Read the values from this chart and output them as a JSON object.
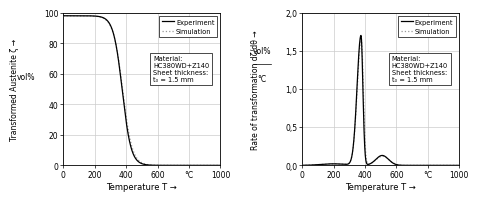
{
  "left": {
    "ylabel": "Transformed Austenite ζ →",
    "ylabel_unit": "vol%",
    "xlabel": "Temperature T →",
    "xlim": [
      0,
      1000
    ],
    "ylim": [
      0,
      100
    ],
    "yticks": [
      0,
      20,
      40,
      60,
      80,
      100
    ],
    "xticks": [
      0,
      200,
      400,
      600,
      800,
      1000
    ],
    "xticklabels": [
      "0",
      "200",
      "400",
      "600",
      "°C",
      "1000"
    ],
    "yticklabels": [
      "0",
      "20",
      "40",
      "60",
      "80",
      "100"
    ],
    "material_line1": "Material:",
    "material_line2": "HC380WD+Z140",
    "thickness_line1": "Sheet thickness:",
    "thickness_line2": "t₀ = 1.5 mm"
  },
  "right": {
    "ylabel": "Rate of transformation dζ/dθ →",
    "ylabel_unit_num": "vol%",
    "ylabel_unit_den": "°C",
    "xlabel": "Temperature T →",
    "xlim": [
      0,
      1000
    ],
    "ylim": [
      0.0,
      2.0
    ],
    "yticks": [
      0.0,
      0.5,
      1.0,
      1.5,
      2.0
    ],
    "xticks": [
      0,
      200,
      400,
      600,
      800,
      1000
    ],
    "xticklabels": [
      "0",
      "200",
      "400",
      "600",
      "°C",
      "1000"
    ],
    "yticklabels": [
      "0,0",
      "0,5",
      "1,0",
      "1,5",
      "2,0"
    ],
    "material_line1": "Material:",
    "material_line2": "HC380WD+Z140",
    "thickness_line1": "Sheet thickness:",
    "thickness_line2": "t₀ = 1.5 mm"
  },
  "legend": {
    "experiment_color": "#000000",
    "simulation_color": "#999999",
    "experiment_label": "Experiment",
    "simulation_label": "Simulation"
  },
  "background": "#ffffff",
  "grid_color": "#cccccc"
}
